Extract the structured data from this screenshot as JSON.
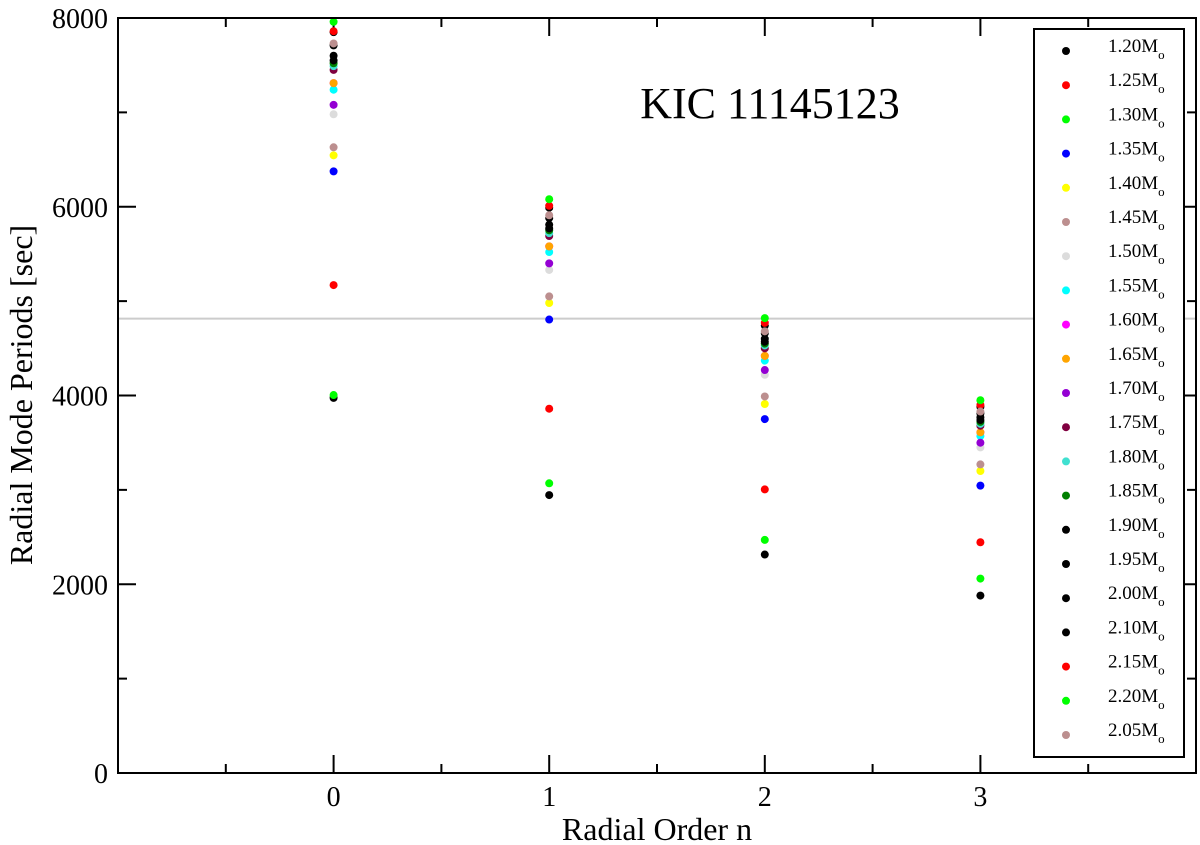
{
  "chart_data": {
    "type": "scatter",
    "xlabel": "Radial Order n",
    "ylabel": "Radial Mode Periods [sec]",
    "annotation": "KIC 11145123",
    "xlim": [
      -1,
      4
    ],
    "ylim": [
      0,
      8000
    ],
    "x_ticks": [
      0,
      1,
      2,
      3
    ],
    "y_ticks": [
      0,
      2000,
      4000,
      6000,
      8000
    ],
    "reference_line_y": 4815,
    "legend_position": "right",
    "series": [
      {
        "name": "1.20M",
        "color": "#000000",
        "x": [
          0,
          1,
          2,
          3
        ],
        "y": [
          3975,
          2945,
          2315,
          1880
        ]
      },
      {
        "name": "1.25M",
        "color": "#ff0000",
        "x": [
          0,
          1,
          2,
          3
        ],
        "y": [
          5170,
          3860,
          3005,
          2445
        ]
      },
      {
        "name": "1.30M",
        "color": "#00ff00",
        "x": [
          0,
          1,
          2,
          3
        ],
        "y": [
          4005,
          3070,
          2470,
          2060
        ]
      },
      {
        "name": "1.35M",
        "color": "#0000ff",
        "x": [
          0,
          1,
          2,
          3
        ],
        "y": [
          6375,
          4805,
          3750,
          3045
        ]
      },
      {
        "name": "1.40M",
        "color": "#ffff00",
        "x": [
          0,
          1,
          2,
          3
        ],
        "y": [
          6545,
          4980,
          3910,
          3200
        ]
      },
      {
        "name": "1.45M",
        "color": "#bc8f8f",
        "x": [
          0,
          1,
          2,
          3
        ],
        "y": [
          6630,
          5050,
          3990,
          3270
        ]
      },
      {
        "name": "1.50M",
        "color": "#dcdcdc",
        "x": [
          0,
          1,
          2,
          3
        ],
        "y": [
          6980,
          5330,
          4220,
          3450
        ]
      },
      {
        "name": "1.55M",
        "color": "#00ffff",
        "x": [
          0,
          1,
          2,
          3
        ],
        "y": [
          7240,
          5520,
          4370,
          3570
        ]
      },
      {
        "name": "1.60M",
        "color": "#ff00ff",
        "x": [
          0,
          1,
          2,
          3
        ],
        "y": [
          7310,
          5580,
          4420,
          3610
        ]
      },
      {
        "name": "1.65M",
        "color": "#ffa500",
        "x": [
          0,
          1,
          2,
          3
        ],
        "y": [
          7310,
          5580,
          4420,
          3610
        ]
      },
      {
        "name": "1.70M",
        "color": "#9400d3",
        "x": [
          0,
          1,
          2,
          3
        ],
        "y": [
          7080,
          5400,
          4270,
          3500
        ]
      },
      {
        "name": "1.75M",
        "color": "#800040",
        "x": [
          0,
          1,
          2,
          3
        ],
        "y": [
          7450,
          5690,
          4500,
          3680
        ]
      },
      {
        "name": "1.80M",
        "color": "#40e0d0",
        "x": [
          0,
          1,
          2,
          3
        ],
        "y": [
          7490,
          5720,
          4530,
          3700
        ]
      },
      {
        "name": "1.85M",
        "color": "#008000",
        "x": [
          0,
          1,
          2,
          3
        ],
        "y": [
          7520,
          5750,
          4550,
          3720
        ]
      },
      {
        "name": "1.90M",
        "color": "#000000",
        "x": [
          0,
          1,
          2,
          3
        ],
        "y": [
          7550,
          5770,
          4570,
          3740
        ]
      },
      {
        "name": "1.95M",
        "color": "#000000",
        "x": [
          0,
          1,
          2,
          3
        ],
        "y": [
          7600,
          5810,
          4600,
          3770
        ]
      },
      {
        "name": "2.00M",
        "color": "#000000",
        "x": [
          0,
          1,
          2,
          3
        ],
        "y": [
          7710,
          5880,
          4660,
          3810
        ]
      },
      {
        "name": "2.10M",
        "color": "#000000",
        "x": [
          0,
          1,
          2,
          3
        ],
        "y": [
          7850,
          5990,
          4740,
          3880
        ]
      },
      {
        "name": "2.15M",
        "color": "#ff0000",
        "x": [
          0,
          1,
          2,
          3
        ],
        "y": [
          7860,
          6010,
          4770,
          3900
        ]
      },
      {
        "name": "2.20M",
        "color": "#00ff00",
        "x": [
          0,
          1,
          2,
          3
        ],
        "y": [
          7960,
          6080,
          4820,
          3950
        ]
      },
      {
        "name": "2.05M",
        "color": "#bc8f8f",
        "x": [
          0,
          1,
          2,
          3
        ],
        "y": [
          7730,
          5910,
          4680,
          3830
        ]
      }
    ],
    "legend_subscript": "o"
  }
}
